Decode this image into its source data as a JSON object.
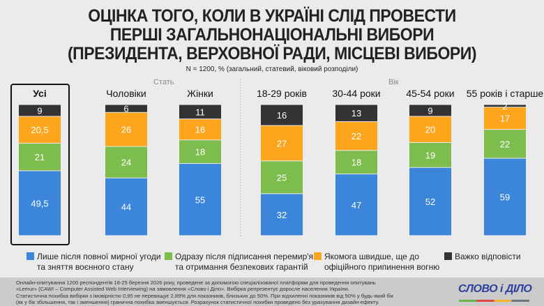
{
  "title_lines": [
    "ОЦІНКА ТОГО, КОЛИ В УКРАЇНІ СЛІД ПРОВЕСТИ",
    "ПЕРШІ ЗАГАЛЬНОНАЦІОНАЛЬНІ ВИБОРИ",
    "(ПРЕЗИДЕНТА, ВЕРХОВНОЇ РАДИ, МІСЦЕВІ ВИБОРИ)"
  ],
  "subtitle": "N = 1200, % (загальний, статевий, віковий розподіли)",
  "groups": {
    "sex": "Стать",
    "age": "Вік"
  },
  "chart_data": {
    "type": "bar",
    "stacked": true,
    "categories": [
      "Усі",
      "Чоловіки",
      "Жінки",
      "18-29 років",
      "30-44 роки",
      "45-54 роки",
      "55 років і старше"
    ],
    "series": [
      {
        "name": "Лише після повної мирної угоди та зняття воєнного стану",
        "color": "#3b86db",
        "values": [
          49.5,
          44,
          55,
          32,
          47,
          52,
          59
        ]
      },
      {
        "name": "Одразу після підписання перемир'я та отримання безпекових гарантій",
        "color": "#7dbd4e",
        "values": [
          21,
          24,
          18,
          25,
          18,
          19,
          22
        ]
      },
      {
        "name": "Якомога швидше, ще до офіційного припинення вогню",
        "color": "#fca51d",
        "values": [
          20.5,
          26,
          16,
          27,
          22,
          20,
          17
        ]
      },
      {
        "name": "Важко відповісти",
        "color": "#333333",
        "values": [
          9,
          6,
          11,
          16,
          13,
          9,
          2
        ]
      }
    ],
    "value_labels": [
      [
        "49,5",
        "44",
        "55",
        "32",
        "47",
        "52",
        "59"
      ],
      [
        "21",
        "24",
        "18",
        "25",
        "18",
        "19",
        "22"
      ],
      [
        "20,5",
        "26",
        "16",
        "27",
        "22",
        "20",
        "17"
      ],
      [
        "9",
        "6",
        "11",
        "16",
        "13",
        "9",
        "2"
      ]
    ],
    "ylim": [
      0,
      100
    ],
    "legend_placement": "bottom"
  },
  "legend": [
    {
      "line1": "Лише після повної мирної угоди",
      "line2": "та зняття воєнного стану"
    },
    {
      "line1": "Одразу після підписання перемир'я",
      "line2": "та отримання безпекових гарантій"
    },
    {
      "line1": "Якомога швидше, ще до",
      "line2": "офіційного припинення вогню"
    },
    {
      "line1": "Важко відповісти",
      "line2": ""
    }
  ],
  "footnote": [
    "Онлайн-опитування 1200 респондентів 18-25 березня 2026 року, проведене за допомогою спеціалізованої платформи для проведення опитувань",
    "«Lemur» (CAWI – Computer Assisted Web Interviewing) на замовлення «Слово і Діло». Вибірка репрезентує доросле населення України.",
    "Статистична похибка вибірки з імовірністю 0,95 не перевищує 2,89% для показників, близьких до 50%. При відхиленні показників від 50% у будь-який бік",
    "(як у бік збільшення, так і зменшення) гранична похибка зменшується. Розрахунок статистичної похибки проведено без урахування дизайн-ефекту."
  ],
  "logo": "СЛОВО і ДІЛО"
}
